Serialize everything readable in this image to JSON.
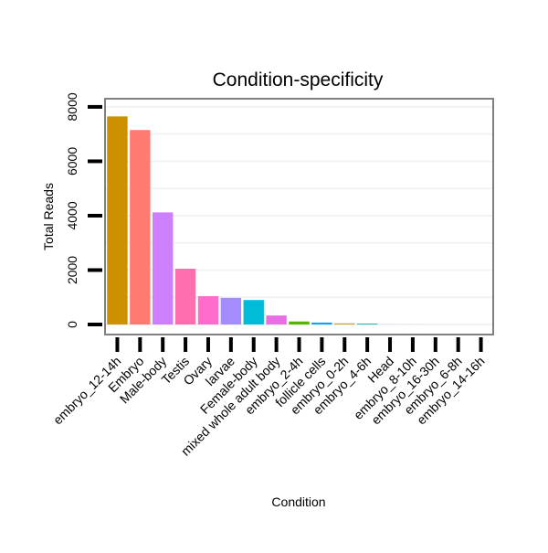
{
  "chart_data": {
    "type": "bar",
    "title": "Condition-specificity",
    "xlabel": "Condition",
    "ylabel": "Total Reads",
    "ylim": [
      0,
      8300
    ],
    "yticks": [
      0,
      2000,
      4000,
      6000,
      8000
    ],
    "ytick_labels": [
      "0",
      "2000",
      "4000",
      "6000",
      "8000"
    ],
    "grid": true,
    "legend": "none",
    "categories": [
      "embryo_12-14h",
      "Embryo",
      "Male-body",
      "Testis",
      "Ovary",
      "larvae",
      "Female-body",
      "mixed whole adult body",
      "embryo_2-4h",
      "follicle cells",
      "embryo_0-2h",
      "embryo_4-6h",
      "Head",
      "embryo_8-10h",
      "embryo_16-30h",
      "embryo_6-8h",
      "embryo_14-16h"
    ],
    "values": [
      7650,
      7150,
      4120,
      2050,
      1040,
      980,
      900,
      330,
      110,
      70,
      40,
      30,
      4,
      2,
      1,
      1,
      1
    ],
    "colors": [
      "#CC9000",
      "#FF7B72",
      "#CC7FFF",
      "#FF6FB0",
      "#FF6CCC",
      "#A48CFF",
      "#00BCD8",
      "#E86EE5",
      "#55B400",
      "#00A6FF",
      "#C8A030",
      "#00B4A8",
      "#C77CFF",
      "#7CAE00",
      "#00BFC4",
      "#F8766D",
      "#619CFF"
    ]
  }
}
